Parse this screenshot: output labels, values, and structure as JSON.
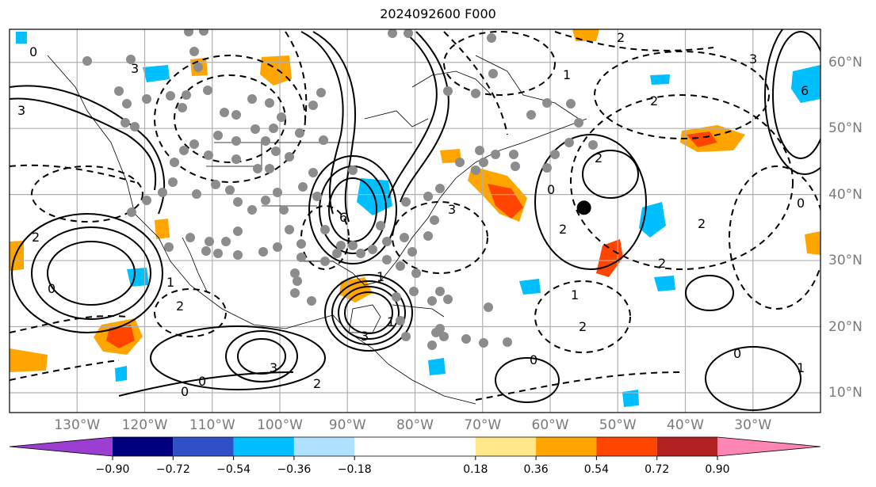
{
  "title": "2024092600 F000",
  "map": {
    "projection": "plate-carree",
    "extent": {
      "lon_min": -140,
      "lon_max": -20,
      "lat_min": 7,
      "lat_max": 65
    },
    "lon_labels": [
      "130°W",
      "120°W",
      "110°W",
      "100°W",
      "90°W",
      "80°W",
      "70°W",
      "60°W",
      "50°W",
      "40°W",
      "30°W"
    ],
    "lon_values": [
      -130,
      -120,
      -110,
      -100,
      -90,
      -80,
      -70,
      -60,
      -50,
      -40,
      -30
    ],
    "lat_labels": [
      "60°N",
      "50°N",
      "40°N",
      "30°N",
      "20°N",
      "10°N"
    ],
    "lat_values": [
      60,
      50,
      40,
      30,
      20,
      10
    ],
    "contour_labels": [
      "0",
      "1",
      "2",
      "3",
      "6",
      "-1",
      "-2",
      "-3"
    ],
    "marker_large_dot": {
      "lon": -55,
      "lat": 38
    },
    "colors": {
      "grid": "#b0b0b0",
      "contour": "#000000",
      "station_dot": "#8c8c8c"
    }
  },
  "colorbar": {
    "ticks": [
      "−0.90",
      "−0.72",
      "−0.54",
      "−0.36",
      "−0.18",
      "0.18",
      "0.36",
      "0.54",
      "0.72",
      "0.90"
    ],
    "tick_values": [
      -0.9,
      -0.72,
      -0.54,
      -0.36,
      -0.18,
      0.18,
      0.36,
      0.54,
      0.72,
      0.9
    ],
    "colors": [
      "#9a3fd1",
      "#00007f",
      "#3050c8",
      "#00bfff",
      "#b0e2ff",
      "#ffffff",
      "#ffe88a",
      "#ffa500",
      "#ff4500",
      "#b22222",
      "#ff85b4"
    ],
    "extend": "both"
  }
}
